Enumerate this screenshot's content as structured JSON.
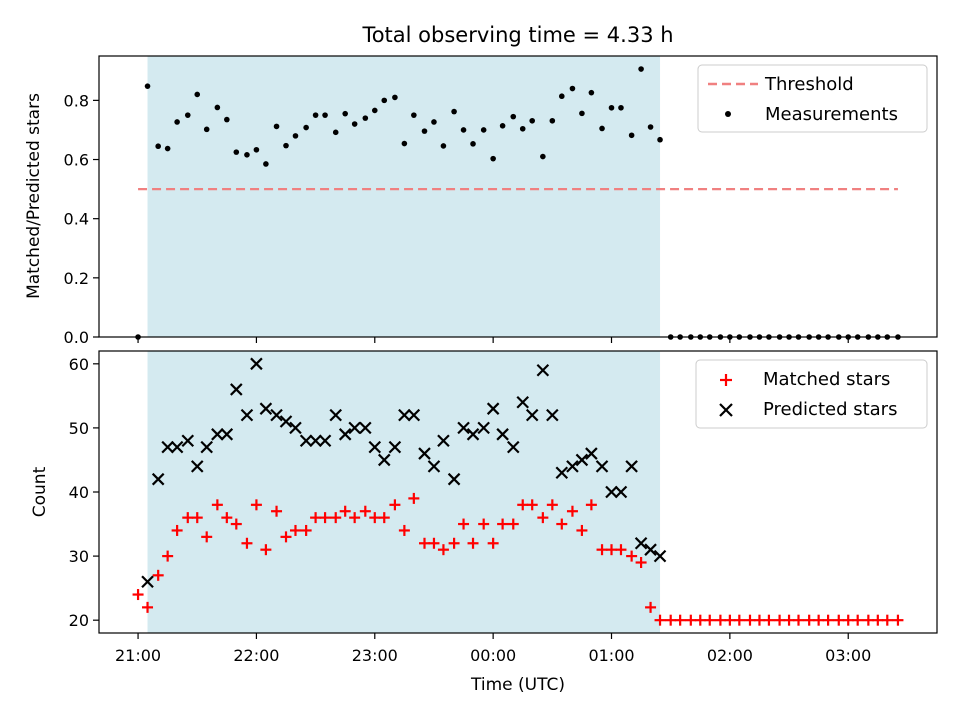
{
  "chart_data": [
    {
      "type": "scatter",
      "title": "Total observing time = 4.33 h",
      "xlabel": "",
      "ylabel": "Matched/Predicted stars",
      "ylim": [
        0,
        0.95
      ],
      "yticks": [
        "0.0",
        "0.2",
        "0.4",
        "0.6",
        "0.8"
      ],
      "shaded_region": {
        "start_hours": 0.08,
        "end_hours": 4.41,
        "color": "#d4eaf0"
      },
      "threshold": {
        "name": "Threshold",
        "value": 0.5,
        "color": "#f08080"
      },
      "legend_position": "upper right",
      "series": [
        {
          "name": "Measurements",
          "color": "#000000",
          "marker": "dot",
          "points": [
            [
              0.0,
              0.0
            ],
            [
              0.08,
              0.848
            ],
            [
              0.17,
              0.645
            ],
            [
              0.25,
              0.637
            ],
            [
              0.33,
              0.727
            ],
            [
              0.42,
              0.75
            ],
            [
              0.5,
              0.82
            ],
            [
              0.58,
              0.702
            ],
            [
              0.67,
              0.776
            ],
            [
              0.75,
              0.735
            ],
            [
              0.83,
              0.625
            ],
            [
              0.92,
              0.616
            ],
            [
              1.0,
              0.633
            ],
            [
              1.08,
              0.585
            ],
            [
              1.17,
              0.712
            ],
            [
              1.25,
              0.647
            ],
            [
              1.33,
              0.68
            ],
            [
              1.42,
              0.708
            ],
            [
              1.5,
              0.75
            ],
            [
              1.58,
              0.75
            ],
            [
              1.67,
              0.692
            ],
            [
              1.75,
              0.755
            ],
            [
              1.83,
              0.72
            ],
            [
              1.92,
              0.74
            ],
            [
              2.0,
              0.766
            ],
            [
              2.08,
              0.8
            ],
            [
              2.17,
              0.81
            ],
            [
              2.25,
              0.654
            ],
            [
              2.33,
              0.75
            ],
            [
              2.42,
              0.696
            ],
            [
              2.5,
              0.727
            ],
            [
              2.58,
              0.646
            ],
            [
              2.67,
              0.762
            ],
            [
              2.75,
              0.7
            ],
            [
              2.83,
              0.653
            ],
            [
              2.92,
              0.7
            ],
            [
              3.0,
              0.603
            ],
            [
              3.08,
              0.714
            ],
            [
              3.17,
              0.745
            ],
            [
              3.25,
              0.704
            ],
            [
              3.33,
              0.731
            ],
            [
              3.42,
              0.61
            ],
            [
              3.5,
              0.731
            ],
            [
              3.58,
              0.814
            ],
            [
              3.67,
              0.84
            ],
            [
              3.75,
              0.756
            ],
            [
              3.83,
              0.826
            ],
            [
              3.92,
              0.705
            ],
            [
              4.0,
              0.775
            ],
            [
              4.08,
              0.775
            ],
            [
              4.17,
              0.682
            ],
            [
              4.25,
              0.906
            ],
            [
              4.33,
              0.71
            ],
            [
              4.41,
              0.667
            ],
            [
              4.5,
              0.0
            ],
            [
              4.58,
              0.0
            ],
            [
              4.67,
              0.0
            ],
            [
              4.75,
              0.0
            ],
            [
              4.83,
              0.0
            ],
            [
              4.92,
              0.0
            ],
            [
              5.0,
              0.0
            ],
            [
              5.08,
              0.0
            ],
            [
              5.17,
              0.0
            ],
            [
              5.25,
              0.0
            ],
            [
              5.33,
              0.0
            ],
            [
              5.42,
              0.0
            ],
            [
              5.5,
              0.0
            ],
            [
              5.58,
              0.0
            ],
            [
              5.67,
              0.0
            ],
            [
              5.75,
              0.0
            ],
            [
              5.83,
              0.0
            ],
            [
              5.92,
              0.0
            ],
            [
              6.0,
              0.0
            ],
            [
              6.08,
              0.0
            ],
            [
              6.17,
              0.0
            ],
            [
              6.25,
              0.0
            ],
            [
              6.33,
              0.0
            ],
            [
              6.42,
              0.0
            ]
          ]
        }
      ]
    },
    {
      "type": "scatter",
      "xlabel": "Time (UTC)",
      "ylabel": "Count",
      "ylim": [
        18,
        62
      ],
      "yticks": [
        "20",
        "30",
        "40",
        "50",
        "60"
      ],
      "xrange_hours": [
        -0.33,
        6.75
      ],
      "xtick_hours": [
        0,
        1,
        2,
        3,
        4,
        5,
        6
      ],
      "xticks": [
        "21:00",
        "22:00",
        "23:00",
        "00:00",
        "01:00",
        "02:00",
        "03:00"
      ],
      "shaded_region": {
        "start_hours": 0.08,
        "end_hours": 4.41,
        "color": "#d4eaf0"
      },
      "legend_position": "upper right",
      "series": [
        {
          "name": "Matched stars",
          "color": "#ff0000",
          "marker": "plus",
          "points": [
            [
              0.0,
              24
            ],
            [
              0.08,
              22
            ],
            [
              0.17,
              27
            ],
            [
              0.25,
              30
            ],
            [
              0.33,
              34
            ],
            [
              0.42,
              36
            ],
            [
              0.5,
              36
            ],
            [
              0.58,
              33
            ],
            [
              0.67,
              38
            ],
            [
              0.75,
              36
            ],
            [
              0.83,
              35
            ],
            [
              0.92,
              32
            ],
            [
              1.0,
              38
            ],
            [
              1.08,
              31
            ],
            [
              1.17,
              37
            ],
            [
              1.25,
              33
            ],
            [
              1.33,
              34
            ],
            [
              1.42,
              34
            ],
            [
              1.5,
              36
            ],
            [
              1.58,
              36
            ],
            [
              1.67,
              36
            ],
            [
              1.75,
              37
            ],
            [
              1.83,
              36
            ],
            [
              1.92,
              37
            ],
            [
              2.0,
              36
            ],
            [
              2.08,
              36
            ],
            [
              2.17,
              38
            ],
            [
              2.25,
              34
            ],
            [
              2.33,
              39
            ],
            [
              2.42,
              32
            ],
            [
              2.5,
              32
            ],
            [
              2.58,
              31
            ],
            [
              2.67,
              32
            ],
            [
              2.75,
              35
            ],
            [
              2.83,
              32
            ],
            [
              2.92,
              35
            ],
            [
              3.0,
              32
            ],
            [
              3.08,
              35
            ],
            [
              3.17,
              35
            ],
            [
              3.25,
              38
            ],
            [
              3.33,
              38
            ],
            [
              3.42,
              36
            ],
            [
              3.5,
              38
            ],
            [
              3.58,
              35
            ],
            [
              3.67,
              37
            ],
            [
              3.75,
              34
            ],
            [
              3.83,
              38
            ],
            [
              3.92,
              31
            ],
            [
              4.0,
              31
            ],
            [
              4.08,
              31
            ],
            [
              4.17,
              30
            ],
            [
              4.25,
              29
            ],
            [
              4.33,
              22
            ],
            [
              4.41,
              20
            ],
            [
              4.5,
              20
            ],
            [
              4.58,
              20
            ],
            [
              4.67,
              20
            ],
            [
              4.75,
              20
            ],
            [
              4.83,
              20
            ],
            [
              4.92,
              20
            ],
            [
              5.0,
              20
            ],
            [
              5.08,
              20
            ],
            [
              5.17,
              20
            ],
            [
              5.25,
              20
            ],
            [
              5.33,
              20
            ],
            [
              5.42,
              20
            ],
            [
              5.5,
              20
            ],
            [
              5.58,
              20
            ],
            [
              5.67,
              20
            ],
            [
              5.75,
              20
            ],
            [
              5.83,
              20
            ],
            [
              5.92,
              20
            ],
            [
              6.0,
              20
            ],
            [
              6.08,
              20
            ],
            [
              6.17,
              20
            ],
            [
              6.25,
              20
            ],
            [
              6.33,
              20
            ],
            [
              6.42,
              20
            ]
          ]
        },
        {
          "name": "Predicted stars",
          "color": "#000000",
          "marker": "x",
          "points": [
            [
              0.08,
              26
            ],
            [
              0.17,
              42
            ],
            [
              0.25,
              47
            ],
            [
              0.33,
              47
            ],
            [
              0.42,
              48
            ],
            [
              0.5,
              44
            ],
            [
              0.58,
              47
            ],
            [
              0.67,
              49
            ],
            [
              0.75,
              49
            ],
            [
              0.83,
              56
            ],
            [
              0.92,
              52
            ],
            [
              1.0,
              60
            ],
            [
              1.08,
              53
            ],
            [
              1.17,
              52
            ],
            [
              1.25,
              51
            ],
            [
              1.33,
              50
            ],
            [
              1.42,
              48
            ],
            [
              1.5,
              48
            ],
            [
              1.58,
              48
            ],
            [
              1.67,
              52
            ],
            [
              1.75,
              49
            ],
            [
              1.83,
              50
            ],
            [
              1.92,
              50
            ],
            [
              2.0,
              47
            ],
            [
              2.08,
              45
            ],
            [
              2.17,
              47
            ],
            [
              2.25,
              52
            ],
            [
              2.33,
              52
            ],
            [
              2.42,
              46
            ],
            [
              2.5,
              44
            ],
            [
              2.58,
              48
            ],
            [
              2.67,
              42
            ],
            [
              2.75,
              50
            ],
            [
              2.83,
              49
            ],
            [
              2.92,
              50
            ],
            [
              3.0,
              53
            ],
            [
              3.08,
              49
            ],
            [
              3.17,
              47
            ],
            [
              3.25,
              54
            ],
            [
              3.33,
              52
            ],
            [
              3.42,
              59
            ],
            [
              3.5,
              52
            ],
            [
              3.58,
              43
            ],
            [
              3.67,
              44
            ],
            [
              3.75,
              45
            ],
            [
              3.83,
              46
            ],
            [
              3.92,
              44
            ],
            [
              4.0,
              40
            ],
            [
              4.08,
              40
            ],
            [
              4.17,
              44
            ],
            [
              4.25,
              32
            ],
            [
              4.33,
              31
            ],
            [
              4.41,
              30
            ]
          ]
        }
      ]
    }
  ]
}
